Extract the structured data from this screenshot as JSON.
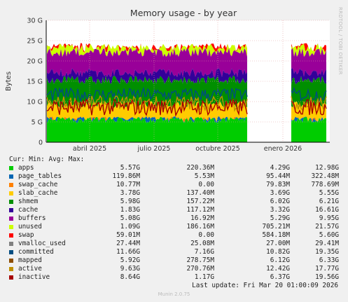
{
  "chart_data": {
    "type": "area",
    "title": "Memory usage - by year",
    "ylabel": "Bytes",
    "yticks": [
      "0",
      "5 G",
      "10 G",
      "15 G",
      "20 G",
      "25 G",
      "30 G"
    ],
    "ylim": [
      0,
      30
    ],
    "xticks": [
      "abril 2025",
      "julio 2025",
      "octubre 2025",
      "enero 2026"
    ],
    "grid": true,
    "stack_tops_G": {
      "apps": 5.5,
      "page_tables": 5.6,
      "swap_cache": 5.6,
      "slab_cache": 9.3,
      "shmem": 15.3,
      "cache": 17.1,
      "buffers": 22.1,
      "unused": 23.2,
      "swap": 23.3
    },
    "lines_G": {
      "active": 9.6,
      "inactive": 8.6,
      "committed": 11.7
    },
    "gap": "late October 2025 to early February 2026",
    "series": [
      {
        "name": "apps",
        "color": "#00cc00",
        "cur": "5.57G",
        "min": "220.36M",
        "avg": "4.29G",
        "max": "12.98G"
      },
      {
        "name": "page_tables",
        "color": "#0066b3",
        "cur": "119.86M",
        "min": "5.53M",
        "avg": "95.44M",
        "max": "322.48M"
      },
      {
        "name": "swap_cache",
        "color": "#ff8000",
        "cur": "10.77M",
        "min": "0.00",
        "avg": "79.83M",
        "max": "778.69M"
      },
      {
        "name": "slab_cache",
        "color": "#ffcc00",
        "cur": "3.78G",
        "min": "137.40M",
        "avg": "3.69G",
        "max": "5.55G"
      },
      {
        "name": "shmem",
        "color": "#008f00",
        "cur": "5.98G",
        "min": "157.22M",
        "avg": "6.02G",
        "max": "6.21G"
      },
      {
        "name": "cache",
        "color": "#330099",
        "cur": "1.83G",
        "min": "117.12M",
        "avg": "3.32G",
        "max": "16.61G"
      },
      {
        "name": "buffers",
        "color": "#990099",
        "cur": "5.08G",
        "min": "16.92M",
        "avg": "5.29G",
        "max": "9.95G"
      },
      {
        "name": "unused",
        "color": "#ccff00",
        "cur": "1.09G",
        "min": "186.16M",
        "avg": "705.21M",
        "max": "21.57G"
      },
      {
        "name": "swap",
        "color": "#ff0000",
        "cur": "59.01M",
        "min": "0.00",
        "avg": "584.18M",
        "max": "5.60G"
      },
      {
        "name": "vmalloc_used",
        "color": "#808080",
        "cur": "27.44M",
        "min": "25.08M",
        "avg": "27.00M",
        "max": "29.41M"
      },
      {
        "name": "committed",
        "color": "#004d80",
        "cur": "11.66G",
        "min": "7.16G",
        "avg": "10.82G",
        "max": "19.35G"
      },
      {
        "name": "mapped",
        "color": "#8c4d00",
        "cur": "5.92G",
        "min": "278.75M",
        "avg": "6.12G",
        "max": "6.33G"
      },
      {
        "name": "active",
        "color": "#bf8f00",
        "cur": "9.63G",
        "min": "270.76M",
        "avg": "12.42G",
        "max": "17.77G"
      },
      {
        "name": "inactive",
        "color": "#a60000",
        "cur": "8.64G",
        "min": "1.17G",
        "avg": "6.37G",
        "max": "19.56G"
      }
    ]
  },
  "legend_headers": {
    "cur": "Cur:",
    "min": "Min:",
    "avg": "Avg:",
    "max": "Max:"
  },
  "last_update": "Last update: Fri Mar 20 01:00:09 2026",
  "footer": "Munin 2.0.75",
  "side_label": "RRDTOOL / TOBI OETIKER"
}
